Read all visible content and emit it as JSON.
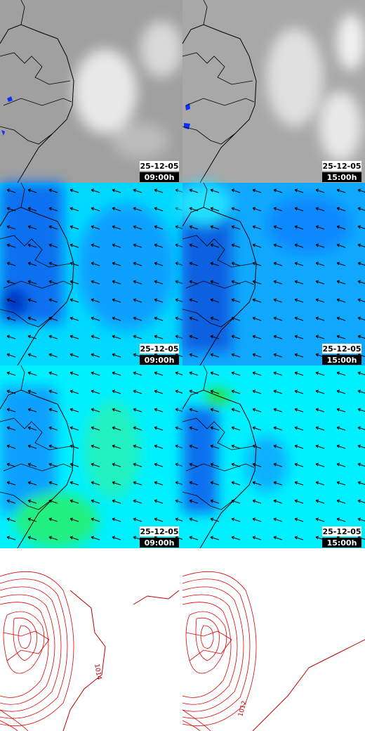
{
  "panels": [
    {
      "date": "25-12-05",
      "time": "09:00h"
    },
    {
      "date": "25-12-05",
      "time": "15:00h"
    },
    {
      "date": "25-12-05",
      "time": "09:00h"
    },
    {
      "date": "25-12-05",
      "time": "15:00h"
    },
    {
      "date": "25-12-05",
      "time": "09:00h"
    },
    {
      "date": "25-12-05",
      "time": "15:00h"
    },
    {
      "contour_label": "1014"
    },
    {
      "contour_label": "1012"
    }
  ]
}
